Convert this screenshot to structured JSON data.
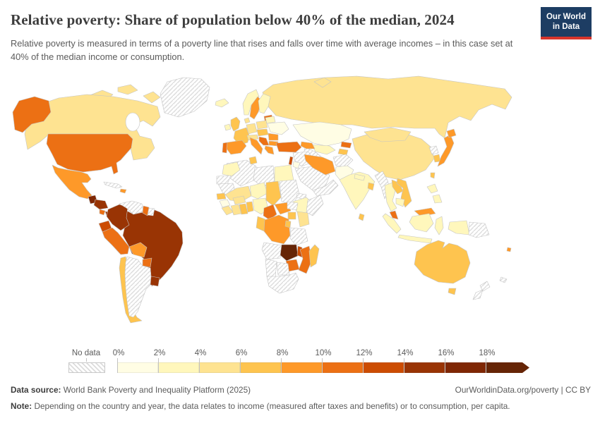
{
  "header": {
    "title": "Relative poverty: Share of population below 40% of the median, 2024",
    "subtitle": "Relative poverty is measured in terms of a poverty line that rises and falls over time with average incomes – in this case set at 40% of the median income or consumption.",
    "logo": {
      "line1": "Our World",
      "line2": "in Data",
      "bg_color": "#1d3d63",
      "accent_color": "#d7352c"
    }
  },
  "legend": {
    "no_data_label": "No data",
    "ticks": [
      "0%",
      "2%",
      "4%",
      "6%",
      "8%",
      "10%",
      "12%",
      "14%",
      "16%",
      "18%"
    ],
    "bins": [
      {
        "range": "0-2%",
        "color": "#fffde4"
      },
      {
        "range": "2-4%",
        "color": "#fff7bc"
      },
      {
        "range": "4-6%",
        "color": "#fee391"
      },
      {
        "range": "6-8%",
        "color": "#fec44f"
      },
      {
        "range": "8-10%",
        "color": "#fe9929"
      },
      {
        "range": "10-12%",
        "color": "#ec7014"
      },
      {
        "range": "12-14%",
        "color": "#cc4c02"
      },
      {
        "range": "14-16%",
        "color": "#993404"
      },
      {
        "range": "16-18%",
        "color": "#7f2704"
      },
      {
        "range": "18%+",
        "color": "#662506"
      }
    ]
  },
  "footer": {
    "datasource_label": "Data source:",
    "datasource_text": "World Bank Poverty and Inequality Platform (2025)",
    "link_text": "OurWorldinData.org/poverty | CC BY",
    "note_label": "Note:",
    "note_text": "Depending on the country and year, the data relates to income (measured after taxes and benefits) or to consumption, per capita."
  },
  "chart_data": {
    "type": "choropleth-map",
    "title": "Relative poverty: Share of population below 40% of the median, 2024",
    "year": "2024",
    "metric": "Share of population below 40% of the median income or consumption",
    "legend_position": "bottom",
    "no_data_style": "diagonal-hatch",
    "bin_edges_percent": [
      0,
      2,
      4,
      6,
      8,
      10,
      12,
      14,
      16,
      18
    ],
    "values": {
      "canada": "4-6%",
      "united-states": "10-12%",
      "mexico": "8-10%",
      "guatemala": "16-18%",
      "honduras-nicaragua": "14-16%",
      "costa-rica": "10-12%",
      "panama": "14-16%",
      "dominican-republic": "8-10%",
      "cuba": "No data",
      "greenland": "No data",
      "colombia": "14-16%",
      "venezuela": "No data",
      "guyana": "10-12%",
      "suriname": "No data",
      "ecuador": "12-14%",
      "peru": "10-12%",
      "brazil": "14-16%",
      "bolivia": "8-10%",
      "paraguay": "10-12%",
      "chile": "6-8%",
      "argentina": "No data",
      "uruguay": "14-16%",
      "iceland": "2-4%",
      "ireland": "2-4%",
      "united-kingdom": "6-8%",
      "norway": "2-4%",
      "sweden": "8-10%",
      "finland": "2-4%",
      "denmark": "4-6%",
      "germany": "4-6%",
      "france": "6-8%",
      "portugal": "10-12%",
      "spain": "8-10%",
      "italy": "8-10%",
      "poland": "4-6%",
      "lithuania": "10-12%",
      "belarus": "2-4%",
      "ukraine": "0-2%",
      "romania": "8-10%",
      "bulgaria": "8-10%",
      "greece": "8-10%",
      "balkans": "10-12%",
      "turkey": "10-12%",
      "russia": "4-6%",
      "kazakhstan": "0-2%",
      "uzbekistan": "2-4%",
      "turkmenistan": "No data",
      "kyrgyzstan": "10-12%",
      "tajikistan": "6-8%",
      "iran": "8-10%",
      "iraq-syria": "No data",
      "israel": "12-14%",
      "jordan": "0-2%",
      "saudi-arabia": "No data",
      "yemen-oman": "No data",
      "afghanistan": "No data",
      "pakistan": "0-2%",
      "india": "2-4%",
      "bangladesh": "6-8%",
      "sri-lanka": "6-8%",
      "china": "4-6%",
      "mongolia": "4-6%",
      "myanmar": "No data",
      "thailand": "2-4%",
      "laos": "6-8%",
      "vietnam": "6-8%",
      "cambodia": "2-4%",
      "malaysia": "10-12%",
      "indonesia": "2-4%",
      "philippines": "2-4%",
      "papua-new-guinea": "No data",
      "japan": "8-10%",
      "south-korea": "6-8%",
      "north-korea": "No data",
      "taiwan": "6-8%",
      "australia": "6-8%",
      "new-zealand": "No data",
      "fiji": "8-10%",
      "morocco": "2-4%",
      "algeria": "No data",
      "tunisia": "6-8%",
      "libya": "No data",
      "egypt": "2-4%",
      "mauritania": "No data",
      "mali": "4-6%",
      "niger": "2-4%",
      "chad": "6-8%",
      "sudan": "No data",
      "ethiopia": "2-4%",
      "somalia": "No data",
      "senegal": "6-8%",
      "guinea": "0-2%",
      "ivory-coast": "4-6%",
      "ghana": "6-8%",
      "nigeria": "2-4%",
      "cameroon": "10-12%",
      "central-african-republic": "8-10%",
      "south-sudan": "No data",
      "uganda": "6-8%",
      "kenya": "4-6%",
      "dr-congo": "8-10%",
      "tanzania": "No data",
      "angola": "No data",
      "zambia": "18%+",
      "malawi": "12-14%",
      "mozambique": "10-12%",
      "zimbabwe": "10-12%",
      "botswana": "No data",
      "namibia": "No data",
      "south-africa": "No data",
      "madagascar": "6-8%"
    }
  },
  "map": {
    "ocean_color": "#ffffff",
    "border_color": "#c4c4c4",
    "regions": {
      "greenland": "no-data",
      "canada-arctic": "#fee391",
      "canada": "#fee391",
      "alaska": "#ec7014",
      "usa": "#ec7014",
      "mexico": "#fe9929",
      "cuba": "no-data",
      "hispaniola": "#fe9929",
      "guatemala": "#7f2704",
      "honduras-nicaragua": "#993404",
      "costa-rica": "#ec7014",
      "panama": "#993404",
      "russia": "#fee391",
      "novaya-zemlya": "#fee391",
      "brazil": "#993404",
      "colombia": "#993404",
      "venezuela": "no-data",
      "guyana": "#ec7014",
      "suriname": "no-data",
      "ecuador": "#cc4c02",
      "peru": "#ec7014",
      "bolivia": "#fe9929",
      "paraguay": "#ec7014",
      "chile": "#fec44f",
      "argentina": "no-data",
      "uruguay": "#993404",
      "iceland": "#fff7bc",
      "norway": "#fff7bc",
      "sweden": "#fe9929",
      "finland": "#fff7bc",
      "baltics": "#ec7014",
      "ireland": "#fff7bc",
      "uk": "#fec44f",
      "denmark": "#fee391",
      "germany": "#fee391",
      "france": "#fec44f",
      "portugal": "#ec7014",
      "spain": "#fe9929",
      "italy": "#fe9929",
      "switzerland-austria": "#fee391",
      "poland": "#fee391",
      "czech-hungary": "#fec44f",
      "balkans": "#ec7014",
      "romania": "#fe9929",
      "bulgaria": "#fe9929",
      "greece": "#fe9929",
      "belarus": "#fff7bc",
      "ukraine": "#fffde4",
      "kazakhstan": "#fffde4",
      "uzbekistan": "#fff7bc",
      "turkmenistan": "no-data",
      "kyrgyzstan": "#ec7014",
      "tajikistan": "#fec44f",
      "caucasus": "#fe9929",
      "turkey": "#ec7014",
      "syria-iraq": "no-data",
      "israel": "#cc4c02",
      "jordan": "#fffde4",
      "saudi-arabia": "no-data",
      "yemen-oman": "no-data",
      "iran": "#fe9929",
      "afghanistan": "no-data",
      "pakistan": "#fffde4",
      "india": "#fff7bc",
      "nepal": "#fff7bc",
      "bangladesh": "#fec44f",
      "sri-lanka": "#fec44f",
      "china": "#fee391",
      "mongolia": "#fee391",
      "myanmar": "no-data",
      "thailand": "#fff7bc",
      "laos": "#fec44f",
      "vietnam": "#fec44f",
      "cambodia": "#fff7bc",
      "malaysia": "#ec7014",
      "borneo-malaysia": "#fe9929",
      "sumatra": "#fff7bc",
      "borneo": "#fff7bc",
      "java": "#fff7bc",
      "sulawesi": "#fff7bc",
      "papua-indonesia": "#fff7bc",
      "png": "no-data",
      "philippines-north": "#fff7bc",
      "philippines-south": "#fff7bc",
      "taiwan": "#fec44f",
      "south-korea": "#fec44f",
      "north-korea": "no-data",
      "japan": "#fe9929",
      "hokkaido": "#fe9929",
      "algeria": "no-data",
      "libya": "no-data",
      "egypt": "#fff7bc",
      "morocco": "#fff7bc",
      "wsahara": "no-data",
      "tunisia": "#fec44f",
      "mauritania": "no-data",
      "mali": "#fee391",
      "niger": "#fff7bc",
      "chad": "#fec44f",
      "sudan": "no-data",
      "eritrea": "no-data",
      "ethiopia": "#fff7bc",
      "somalia": "no-data",
      "senegal": "#fec44f",
      "guinea": "#fffde4",
      "sierra-liberia": "#fee391",
      "ivory-coast": "#fee391",
      "burkina": "#fee391",
      "ghana": "#fec44f",
      "togo-benin": "#fec44f",
      "nigeria": "#fff7bc",
      "cameroon": "#ec7014",
      "car": "#fe9929",
      "south-sudan": "no-data",
      "uganda": "#fec44f",
      "kenya": "#fee391",
      "drc": "#fe9929",
      "congo-gabon": "#fec44f",
      "rwanda-burundi": "#fec44f",
      "tanzania": "no-data",
      "angola": "no-data",
      "zambia": "#662506",
      "malawi": "#cc4c02",
      "mozambique": "#ec7014",
      "zimbabwe": "#ec7014",
      "botswana": "no-data",
      "namibia": "no-data",
      "south-africa": "no-data",
      "madagascar": "#fec44f",
      "australia": "#fec44f",
      "tasmania": "#fec44f",
      "nz-north": "no-data",
      "nz-south": "no-data",
      "fiji": "#fe9929",
      "new-caledonia": "no-data"
    }
  }
}
